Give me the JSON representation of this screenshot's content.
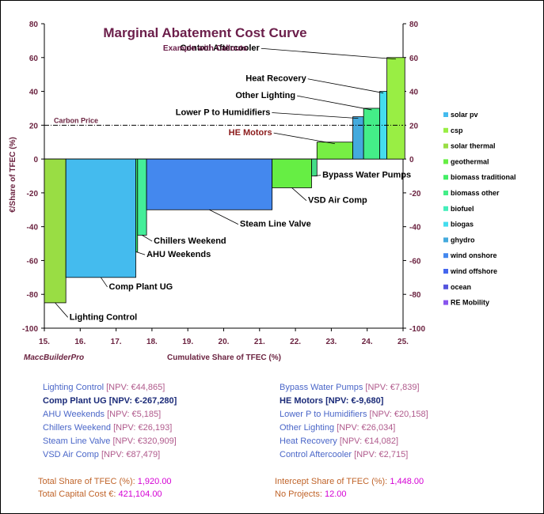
{
  "chart_data": {
    "type": "bar",
    "subtype": "marginal-abatement-cost-curve",
    "title": "Marginal Abatement Cost Curve",
    "subtitle": "Example with Callouts",
    "xlabel": "Cumulative Share of TFEC  (%)",
    "ylabel": "€/Share of TFEC  (%)",
    "watermark": "MaccBuilderPro",
    "xlim": [
      15,
      25
    ],
    "ylim": [
      -100,
      80
    ],
    "xticks": [
      "15.",
      "16.",
      "17.",
      "18.",
      "19.",
      "20.",
      "21.",
      "22.",
      "23.",
      "24.",
      "25."
    ],
    "yticks_left": [
      "80",
      "60",
      "40",
      "20",
      "0",
      "-20",
      "-40",
      "-60",
      "-80",
      "-100"
    ],
    "yticks_right": [
      "80",
      "60",
      "40",
      "20",
      "0",
      "-20",
      "-40",
      "-60",
      "-80",
      "-100"
    ],
    "carbon_price": {
      "label": "Carbon Price",
      "value": 20
    },
    "bars": [
      {
        "name": "Lighting Control",
        "x0": 15.0,
        "x1": 15.6,
        "value": -85,
        "color": "#99dd44",
        "callout": [
          15.7,
          -95
        ]
      },
      {
        "name": "Comp Plant UG",
        "x0": 15.6,
        "x1": 17.55,
        "value": -70,
        "color": "#44bbee",
        "callout": [
          16.8,
          -77
        ]
      },
      {
        "name": "AHU  Weekends",
        "x0": 17.55,
        "x1": 17.6,
        "value": -55,
        "color": "#44ee77",
        "callout": [
          17.85,
          -58
        ]
      },
      {
        "name": "Chillers Weekend",
        "x0": 17.6,
        "x1": 17.85,
        "value": -45,
        "color": "#44ee99",
        "callout": [
          18.05,
          -50
        ]
      },
      {
        "name": "Steam Line Valve",
        "x0": 17.85,
        "x1": 21.35,
        "value": -30,
        "color": "#4488ee",
        "callout": [
          20.45,
          -40
        ]
      },
      {
        "name": "VSD Air Comp",
        "x0": 21.35,
        "x1": 22.45,
        "value": -17,
        "color": "#66ee44",
        "callout": [
          22.35,
          -26
        ]
      },
      {
        "name": "Bypass Water Pumps",
        "x0": 22.45,
        "x1": 22.6,
        "value": -10,
        "color": "#44dd88",
        "callout": [
          22.75,
          -11
        ]
      },
      {
        "name": "HE Motors",
        "x0": 22.6,
        "x1": 23.6,
        "value": 10,
        "color": "#77ee44",
        "callout": [
          21.35,
          14
        ]
      },
      {
        "name": "Lower P to Humidifiers",
        "x0": 23.6,
        "x1": 23.9,
        "value": 25,
        "color": "#44aadd",
        "callout": [
          21.3,
          26
        ]
      },
      {
        "name": "Other Lighting",
        "x0": 23.9,
        "x1": 24.35,
        "value": 30,
        "color": "#44ee88",
        "callout": [
          22.0,
          36
        ]
      },
      {
        "name": "Heat Recovery",
        "x0": 24.35,
        "x1": 24.55,
        "value": 40,
        "color": "#44ddee",
        "callout": [
          22.3,
          46
        ]
      },
      {
        "name": "Control Aftercooler",
        "x0": 24.55,
        "x1": 25.05,
        "value": 60,
        "color": "#99ee44",
        "callout": [
          21.0,
          64
        ]
      }
    ],
    "legend_position": "right",
    "legend": [
      {
        "label": "solar pv",
        "color": "#44bbee"
      },
      {
        "label": "csp",
        "color": "#99ee44"
      },
      {
        "label": "solar thermal",
        "color": "#99dd44"
      },
      {
        "label": "geothermal",
        "color": "#66ee44"
      },
      {
        "label": "biomass traditional",
        "color": "#44ee66"
      },
      {
        "label": "biomass other",
        "color": "#44ee88"
      },
      {
        "label": "biofuel",
        "color": "#44eebb"
      },
      {
        "label": "biogas",
        "color": "#44ddee"
      },
      {
        "label": "ghydro",
        "color": "#44aadd"
      },
      {
        "label": "wind onshore",
        "color": "#4488ee"
      },
      {
        "label": "wind offshore",
        "color": "#4466ee"
      },
      {
        "label": "ocean",
        "color": "#5555dd"
      },
      {
        "label": "RE Mobility",
        "color": "#8855ee"
      }
    ]
  },
  "projects_left": [
    {
      "name": "Lighting Control",
      "npv": "[NPV: €44,865]",
      "bold": false
    },
    {
      "name": "Comp Plant UG",
      "npv": "[NPV: €-267,280]",
      "bold": true
    },
    {
      "name": "AHU Weekends",
      "npv": "[NPV: €5,185]",
      "bold": false
    },
    {
      "name": "Chillers Weekend",
      "npv": "[NPV: €26,193]",
      "bold": false
    },
    {
      "name": "Steam Line Valve",
      "npv": "[NPV: €320,909]",
      "bold": false
    },
    {
      "name": "VSD Air Comp",
      "npv": "[NPV: €87,479]",
      "bold": false
    }
  ],
  "projects_right": [
    {
      "name": "Bypass Water Pumps",
      "npv": "[NPV: €7,839]",
      "bold": false
    },
    {
      "name": "HE Motors",
      "npv": "[NPV: €-9,680]",
      "bold": true
    },
    {
      "name": "Lower P to Humidifiers",
      "npv": "[NPV: €20,158]",
      "bold": false
    },
    {
      "name": "Other Lighting",
      "npv": "[NPV: €26,034]",
      "bold": false
    },
    {
      "name": "Heat Recovery",
      "npv": "[NPV: €14,082]",
      "bold": false
    },
    {
      "name": "Control Aftercooler",
      "npv": "[NPV: €2,715]",
      "bold": false
    }
  ],
  "totals": {
    "share_label": "Total Share of TFEC (%):",
    "share_value": "1,920.00",
    "capital_label": "Total Capital Cost €:",
    "capital_value": "421,104.00",
    "intercept_label": "Intercept Share of TFEC (%):",
    "intercept_value": "1,448.00",
    "projects_label": "No Projects:",
    "projects_value": "12.00"
  }
}
